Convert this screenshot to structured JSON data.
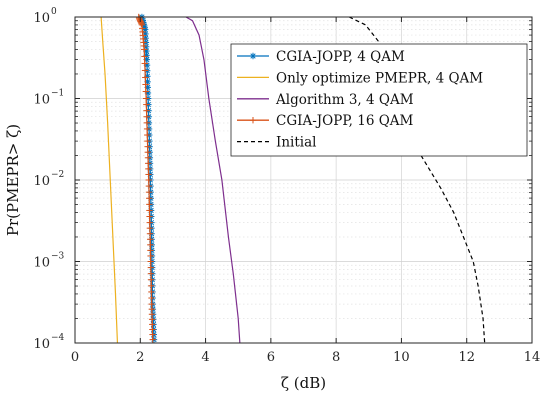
{
  "chart_data": {
    "type": "line",
    "xlabel": "ζ (dB)",
    "ylabel": "Pr(PMEPR> ζ)",
    "xlim": [
      0,
      14
    ],
    "ylim": [
      0.0001,
      1
    ],
    "yscale": "log",
    "grid": "major and minor",
    "legend_position": "top-right",
    "x_ticks": [
      "0",
      "2",
      "4",
      "6",
      "8",
      "10",
      "12",
      "14"
    ],
    "y_ticks": [
      {
        "base": "10",
        "exp": "0",
        "value": 1
      },
      {
        "base": "10",
        "exp": "−1",
        "value": 0.1
      },
      {
        "base": "10",
        "exp": "−2",
        "value": 0.01
      },
      {
        "base": "10",
        "exp": "−3",
        "value": 0.001
      },
      {
        "base": "10",
        "exp": "−4",
        "value": 0.0001
      }
    ],
    "series": [
      {
        "name": "CGIA-JOPP, 4 QAM",
        "color": "#0072BD",
        "line": "solid",
        "marker": "asterisk",
        "points": [
          [
            2.05,
            1
          ],
          [
            2.15,
            0.7
          ],
          [
            2.2,
            0.3
          ],
          [
            2.24,
            0.1
          ],
          [
            2.28,
            0.03
          ],
          [
            2.31,
            0.01
          ],
          [
            2.34,
            0.003
          ],
          [
            2.36,
            0.001
          ],
          [
            2.38,
            0.0003
          ],
          [
            2.42,
            0.00011
          ]
        ]
      },
      {
        "name": "Only optimize PMEPR, 4 QAM",
        "color": "#EDB120",
        "line": "solid",
        "marker": "none",
        "points": [
          [
            0.8,
            1
          ],
          [
            0.85,
            0.5
          ],
          [
            0.92,
            0.2
          ],
          [
            1.0,
            0.05
          ],
          [
            1.08,
            0.01
          ],
          [
            1.16,
            0.002
          ],
          [
            1.24,
            0.0004
          ],
          [
            1.3,
            0.0001
          ]
        ]
      },
      {
        "name": "Algorithm 3, 4 QAM",
        "color": "#7E2F8E",
        "line": "solid",
        "marker": "none",
        "points": [
          [
            3.4,
            1
          ],
          [
            3.6,
            0.9
          ],
          [
            3.8,
            0.6
          ],
          [
            3.95,
            0.3
          ],
          [
            4.1,
            0.1
          ],
          [
            4.3,
            0.03
          ],
          [
            4.5,
            0.01
          ],
          [
            4.7,
            0.002
          ],
          [
            4.85,
            0.0007
          ],
          [
            5.0,
            0.0002
          ],
          [
            5.05,
            0.0001
          ]
        ]
      },
      {
        "name": "CGIA-JOPP, 16 QAM",
        "color": "#D95319",
        "line": "solid",
        "marker": "plus",
        "points": [
          [
            1.95,
            1
          ],
          [
            2.05,
            0.8
          ],
          [
            2.12,
            0.4
          ],
          [
            2.18,
            0.1
          ],
          [
            2.22,
            0.03
          ],
          [
            2.26,
            0.01
          ],
          [
            2.29,
            0.003
          ],
          [
            2.32,
            0.001
          ],
          [
            2.35,
            0.0003
          ],
          [
            2.38,
            0.00011
          ]
        ]
      },
      {
        "name": "Initial",
        "color": "#000000",
        "line": "dashed",
        "marker": "none",
        "points": [
          [
            8.4,
            1
          ],
          [
            8.9,
            0.8
          ],
          [
            9.3,
            0.5
          ],
          [
            9.7,
            0.2
          ],
          [
            10.1,
            0.07
          ],
          [
            10.6,
            0.02
          ],
          [
            11.2,
            0.008
          ],
          [
            11.6,
            0.004
          ],
          [
            11.9,
            0.002
          ],
          [
            12.2,
            0.001
          ],
          [
            12.35,
            0.0005
          ],
          [
            12.5,
            0.0002
          ],
          [
            12.55,
            0.0001
          ]
        ]
      }
    ]
  }
}
